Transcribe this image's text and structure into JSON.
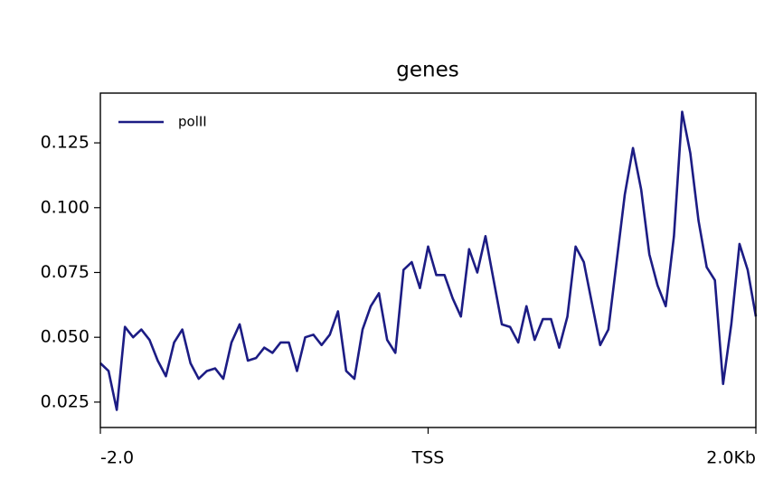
{
  "chart_data": {
    "type": "line",
    "title": "genes",
    "x": [
      -2,
      -1.95,
      -1.9,
      -1.85,
      -1.8,
      -1.75,
      -1.7,
      -1.65,
      -1.6,
      -1.55,
      -1.5,
      -1.45,
      -1.4,
      -1.35,
      -1.3,
      -1.25,
      -1.2,
      -1.15,
      -1.1,
      -1.05,
      -1,
      -0.95,
      -0.9,
      -0.85,
      -0.8,
      -0.75,
      -0.7,
      -0.65,
      -0.6,
      -0.55,
      -0.5,
      -0.45,
      -0.4,
      -0.35,
      -0.3,
      -0.25,
      -0.2,
      -0.15,
      -0.1,
      -0.05,
      0,
      0.05,
      0.1,
      0.15,
      0.2,
      0.25,
      0.3,
      0.35,
      0.4,
      0.45,
      0.5,
      0.55,
      0.6,
      0.65,
      0.7,
      0.75,
      0.8,
      0.85,
      0.9,
      0.95,
      1,
      1.05,
      1.1,
      1.15,
      1.2,
      1.25,
      1.3,
      1.35,
      1.4,
      1.45,
      1.5,
      1.55,
      1.6,
      1.65,
      1.7,
      1.75,
      1.8,
      1.85,
      1.9,
      1.95,
      2
    ],
    "series": [
      {
        "name": "polII",
        "color": "#1c1c84",
        "values": [
          0.04,
          0.037,
          0.022,
          0.054,
          0.05,
          0.053,
          0.049,
          0.041,
          0.035,
          0.048,
          0.053,
          0.04,
          0.034,
          0.037,
          0.038,
          0.034,
          0.048,
          0.055,
          0.041,
          0.042,
          0.046,
          0.044,
          0.048,
          0.048,
          0.037,
          0.05,
          0.051,
          0.047,
          0.051,
          0.06,
          0.037,
          0.034,
          0.053,
          0.062,
          0.067,
          0.049,
          0.044,
          0.076,
          0.079,
          0.069,
          0.085,
          0.074,
          0.074,
          0.065,
          0.058,
          0.084,
          0.075,
          0.089,
          0.072,
          0.055,
          0.054,
          0.048,
          0.062,
          0.049,
          0.057,
          0.057,
          0.046,
          0.058,
          0.085,
          0.079,
          0.063,
          0.047,
          0.053,
          0.079,
          0.105,
          0.123,
          0.107,
          0.082,
          0.07,
          0.062,
          0.089,
          0.137,
          0.121,
          0.095,
          0.077,
          0.072,
          0.032,
          0.055,
          0.086,
          0.076,
          0.058
        ]
      }
    ],
    "xlim": [
      -2,
      2
    ],
    "xticks": [
      {
        "value": -2,
        "label": "-2.0"
      },
      {
        "value": 0,
        "label": "TSS"
      },
      {
        "value": 2,
        "label": "2.0Kb"
      }
    ],
    "ylim": [
      0.0152,
      0.1442
    ],
    "yticks": [
      0.025,
      {
        "value": 0.05,
        "label": "0.050"
      },
      0.075,
      {
        "value": 0.1,
        "label": "0.100"
      },
      0.125
    ],
    "legend": "upper left",
    "grid": false
  }
}
